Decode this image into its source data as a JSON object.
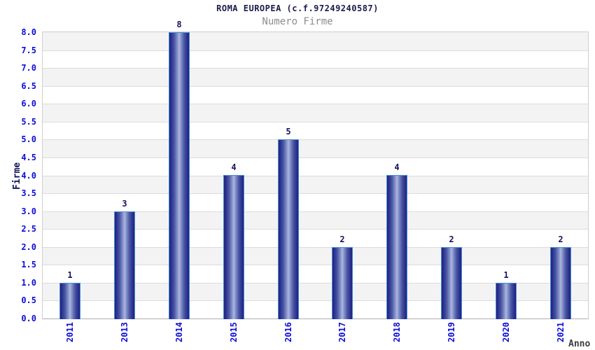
{
  "chart_data": {
    "type": "bar",
    "title": "ROMA EUROPEA (c.f.97249240587)",
    "subtitle": "Numero Firme",
    "xlabel": "Anno",
    "ylabel": "Firme",
    "categories": [
      "2011",
      "2013",
      "2014",
      "2015",
      "2016",
      "2017",
      "2018",
      "2019",
      "2020",
      "2021"
    ],
    "values": [
      1,
      3,
      8,
      4,
      5,
      2,
      4,
      2,
      1,
      2
    ],
    "ylim": [
      0,
      8
    ],
    "ytick_step": 0.5,
    "ytick_format_decimals": 1,
    "grid": "horizontal gridlines with alternating gray/white bands",
    "legend": "none",
    "colors": {
      "bar_dark": "#22247c",
      "bar_light": "#aeb9e0",
      "bar_border": "#4490d8",
      "tick_label": "#0d0dd9",
      "value_label": "#14145f",
      "title": "#1b1b4e",
      "subtitle": "#8c8c8c",
      "band_gray": "#f3f3f3",
      "gridline": "#dcdcdc",
      "background": "#ffffff"
    }
  }
}
